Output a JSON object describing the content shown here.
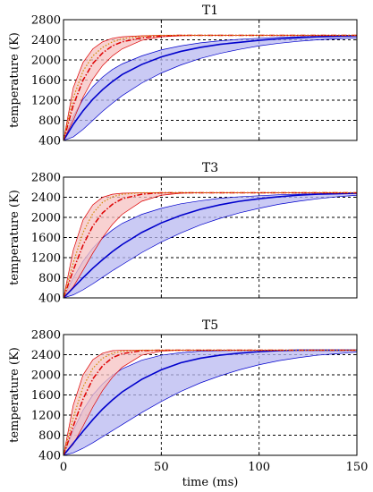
{
  "chart_data": [
    {
      "type": "line",
      "title": "T1",
      "xlabel": "",
      "ylabel": "temperature (K)",
      "xlim": [
        0,
        150
      ],
      "ylim": [
        400,
        2800
      ],
      "xticks": [
        0,
        50,
        100,
        150
      ],
      "yticks": [
        400,
        800,
        1200,
        1600,
        2000,
        2400,
        2800
      ],
      "grid": true,
      "series": [
        {
          "color": "#0000cc",
          "style": "solid",
          "x": [
            0,
            5,
            10,
            15,
            20,
            25,
            30,
            40,
            50,
            60,
            70,
            80,
            90,
            100,
            110,
            120,
            130,
            140,
            150
          ],
          "y": [
            400,
            720,
            990,
            1220,
            1410,
            1570,
            1710,
            1910,
            2060,
            2170,
            2250,
            2310,
            2350,
            2390,
            2420,
            2440,
            2460,
            2470,
            2480
          ]
        },
        {
          "color": "#0000cc",
          "style": "band",
          "x": [
            0,
            5,
            10,
            15,
            20,
            25,
            30,
            40,
            50,
            60,
            70,
            80,
            90,
            100,
            110,
            120,
            130,
            140,
            150
          ],
          "upper": [
            400,
            880,
            1220,
            1470,
            1660,
            1810,
            1920,
            2080,
            2200,
            2280,
            2340,
            2380,
            2410,
            2430,
            2450,
            2460,
            2470,
            2480,
            2480
          ],
          "lower": [
            400,
            470,
            620,
            800,
            980,
            1140,
            1290,
            1540,
            1740,
            1900,
            2030,
            2130,
            2210,
            2280,
            2330,
            2370,
            2400,
            2420,
            2440
          ]
        },
        {
          "color": "#dd0000",
          "style": "dashdot",
          "x": [
            0,
            5,
            10,
            15,
            20,
            25,
            30,
            40,
            50,
            60,
            70,
            80,
            90,
            100,
            110,
            120,
            130,
            140,
            150
          ],
          "y": [
            400,
            1100,
            1600,
            1930,
            2140,
            2280,
            2360,
            2440,
            2480,
            2490,
            2490,
            2490,
            2490,
            2490,
            2490,
            2490,
            2490,
            2490,
            2490
          ]
        },
        {
          "color": "#dd0000",
          "style": "band",
          "x": [
            0,
            5,
            10,
            15,
            20,
            25,
            30,
            40,
            50,
            60,
            70,
            80,
            90,
            100,
            110,
            120,
            130,
            140,
            150
          ],
          "upper": [
            400,
            1450,
            1950,
            2220,
            2360,
            2430,
            2460,
            2480,
            2490,
            2490,
            2490,
            2490,
            2490,
            2490,
            2490,
            2490,
            2490,
            2490,
            2490
          ],
          "lower": [
            400,
            800,
            1260,
            1620,
            1890,
            2080,
            2220,
            2390,
            2460,
            2480,
            2490,
            2490,
            2490,
            2490,
            2490,
            2490,
            2490,
            2490,
            2490
          ]
        },
        {
          "color": "#d08a00",
          "style": "dotted",
          "x": [
            0,
            5,
            10,
            15,
            20,
            25,
            30,
            40,
            50,
            60,
            70,
            80,
            90,
            100,
            110,
            120,
            130,
            140,
            150
          ],
          "y": [
            400,
            1250,
            1780,
            2080,
            2250,
            2360,
            2420,
            2470,
            2490,
            2490,
            2490,
            2490,
            2490,
            2490,
            2490,
            2490,
            2490,
            2490,
            2490
          ]
        }
      ]
    },
    {
      "type": "line",
      "title": "T3",
      "xlabel": "",
      "ylabel": "temperature (K)",
      "xlim": [
        0,
        150
      ],
      "ylim": [
        400,
        2800
      ],
      "xticks": [
        0,
        50,
        100,
        150
      ],
      "yticks": [
        400,
        800,
        1200,
        1600,
        2000,
        2400,
        2800
      ],
      "grid": true,
      "series": [
        {
          "color": "#0000cc",
          "style": "solid",
          "x": [
            0,
            5,
            10,
            15,
            20,
            25,
            30,
            40,
            50,
            60,
            70,
            80,
            90,
            100,
            110,
            120,
            130,
            140,
            150
          ],
          "y": [
            400,
            600,
            800,
            990,
            1160,
            1320,
            1460,
            1700,
            1890,
            2040,
            2160,
            2250,
            2320,
            2370,
            2410,
            2440,
            2460,
            2470,
            2480
          ]
        },
        {
          "color": "#0000cc",
          "style": "band",
          "x": [
            0,
            5,
            10,
            15,
            20,
            25,
            30,
            40,
            50,
            60,
            70,
            80,
            90,
            100,
            110,
            120,
            130,
            140,
            150
          ],
          "upper": [
            400,
            800,
            1130,
            1390,
            1590,
            1750,
            1880,
            2060,
            2180,
            2270,
            2330,
            2380,
            2410,
            2430,
            2450,
            2460,
            2470,
            2480,
            2480
          ],
          "lower": [
            400,
            460,
            560,
            680,
            810,
            940,
            1060,
            1300,
            1510,
            1690,
            1850,
            1980,
            2090,
            2180,
            2260,
            2320,
            2370,
            2410,
            2440
          ]
        },
        {
          "color": "#dd0000",
          "style": "dashdot",
          "x": [
            0,
            5,
            10,
            15,
            20,
            25,
            30,
            40,
            50,
            60,
            70,
            80,
            90,
            100,
            110,
            120,
            130,
            140,
            150
          ],
          "y": [
            400,
            950,
            1450,
            1830,
            2090,
            2260,
            2370,
            2460,
            2490,
            2490,
            2490,
            2490,
            2490,
            2490,
            2490,
            2490,
            2490,
            2490,
            2490
          ]
        },
        {
          "color": "#dd0000",
          "style": "band",
          "x": [
            0,
            5,
            10,
            15,
            20,
            25,
            30,
            40,
            50,
            60,
            70,
            80,
            90,
            100,
            110,
            120,
            130,
            140,
            150
          ],
          "upper": [
            400,
            1350,
            1950,
            2250,
            2400,
            2460,
            2480,
            2490,
            2490,
            2490,
            2490,
            2490,
            2490,
            2490,
            2490,
            2490,
            2490,
            2490,
            2490
          ],
          "lower": [
            400,
            620,
            950,
            1290,
            1600,
            1860,
            2060,
            2320,
            2440,
            2480,
            2490,
            2490,
            2490,
            2490,
            2490,
            2490,
            2490,
            2490,
            2490
          ]
        },
        {
          "color": "#d08a00",
          "style": "dotted",
          "x": [
            0,
            5,
            10,
            15,
            20,
            25,
            30,
            40,
            50,
            60,
            70,
            80,
            90,
            100,
            110,
            120,
            130,
            140,
            150
          ],
          "y": [
            400,
            1100,
            1700,
            2080,
            2300,
            2410,
            2460,
            2490,
            2490,
            2490,
            2490,
            2490,
            2490,
            2490,
            2490,
            2490,
            2490,
            2490,
            2490
          ]
        }
      ]
    },
    {
      "type": "line",
      "title": "T5",
      "xlabel": "time (ms)",
      "ylabel": "temperature (K)",
      "xlim": [
        0,
        150
      ],
      "ylim": [
        400,
        2800
      ],
      "xticks": [
        0,
        50,
        100,
        150
      ],
      "yticks": [
        400,
        800,
        1200,
        1600,
        2000,
        2400,
        2800
      ],
      "grid": true,
      "series": [
        {
          "color": "#0000cc",
          "style": "solid",
          "x": [
            0,
            5,
            10,
            15,
            20,
            25,
            30,
            40,
            50,
            60,
            70,
            80,
            90,
            100,
            110,
            120,
            130,
            140,
            150
          ],
          "y": [
            400,
            640,
            880,
            1110,
            1320,
            1500,
            1660,
            1910,
            2100,
            2240,
            2330,
            2390,
            2430,
            2460,
            2480,
            2490,
            2490,
            2490,
            2490
          ]
        },
        {
          "color": "#0000cc",
          "style": "band",
          "x": [
            0,
            5,
            10,
            15,
            20,
            25,
            30,
            40,
            50,
            60,
            70,
            80,
            90,
            100,
            110,
            120,
            130,
            140,
            150
          ],
          "upper": [
            400,
            900,
            1300,
            1600,
            1820,
            1990,
            2120,
            2290,
            2390,
            2440,
            2470,
            2480,
            2490,
            2490,
            2490,
            2490,
            2490,
            2490,
            2490
          ],
          "lower": [
            400,
            450,
            540,
            650,
            770,
            890,
            1010,
            1250,
            1470,
            1670,
            1840,
            1980,
            2100,
            2200,
            2280,
            2340,
            2390,
            2420,
            2450
          ]
        },
        {
          "color": "#dd0000",
          "style": "dashdot",
          "x": [
            0,
            5,
            10,
            15,
            20,
            25,
            30,
            40,
            50,
            60,
            70,
            80,
            90,
            100,
            110,
            120,
            130,
            140,
            150
          ],
          "y": [
            400,
            980,
            1520,
            1920,
            2180,
            2340,
            2420,
            2480,
            2490,
            2490,
            2490,
            2490,
            2490,
            2490,
            2490,
            2490,
            2490,
            2490,
            2490
          ]
        },
        {
          "color": "#dd0000",
          "style": "band",
          "x": [
            0,
            5,
            10,
            15,
            20,
            25,
            30,
            40,
            50,
            60,
            70,
            80,
            90,
            100,
            110,
            120,
            130,
            140,
            150
          ],
          "upper": [
            400,
            1400,
            2000,
            2300,
            2430,
            2480,
            2490,
            2490,
            2490,
            2490,
            2490,
            2490,
            2490,
            2490,
            2490,
            2490,
            2490,
            2490,
            2490
          ],
          "lower": [
            400,
            620,
            980,
            1360,
            1690,
            1950,
            2150,
            2390,
            2470,
            2490,
            2490,
            2490,
            2490,
            2490,
            2490,
            2490,
            2490,
            2490,
            2490
          ]
        },
        {
          "color": "#d08a00",
          "style": "dotted",
          "x": [
            0,
            5,
            10,
            15,
            20,
            25,
            30,
            40,
            50,
            60,
            70,
            80,
            90,
            100,
            110,
            120,
            130,
            140,
            150
          ],
          "y": [
            400,
            1150,
            1760,
            2130,
            2330,
            2430,
            2470,
            2490,
            2490,
            2490,
            2490,
            2490,
            2490,
            2490,
            2490,
            2490,
            2490,
            2490,
            2490
          ]
        }
      ]
    }
  ]
}
